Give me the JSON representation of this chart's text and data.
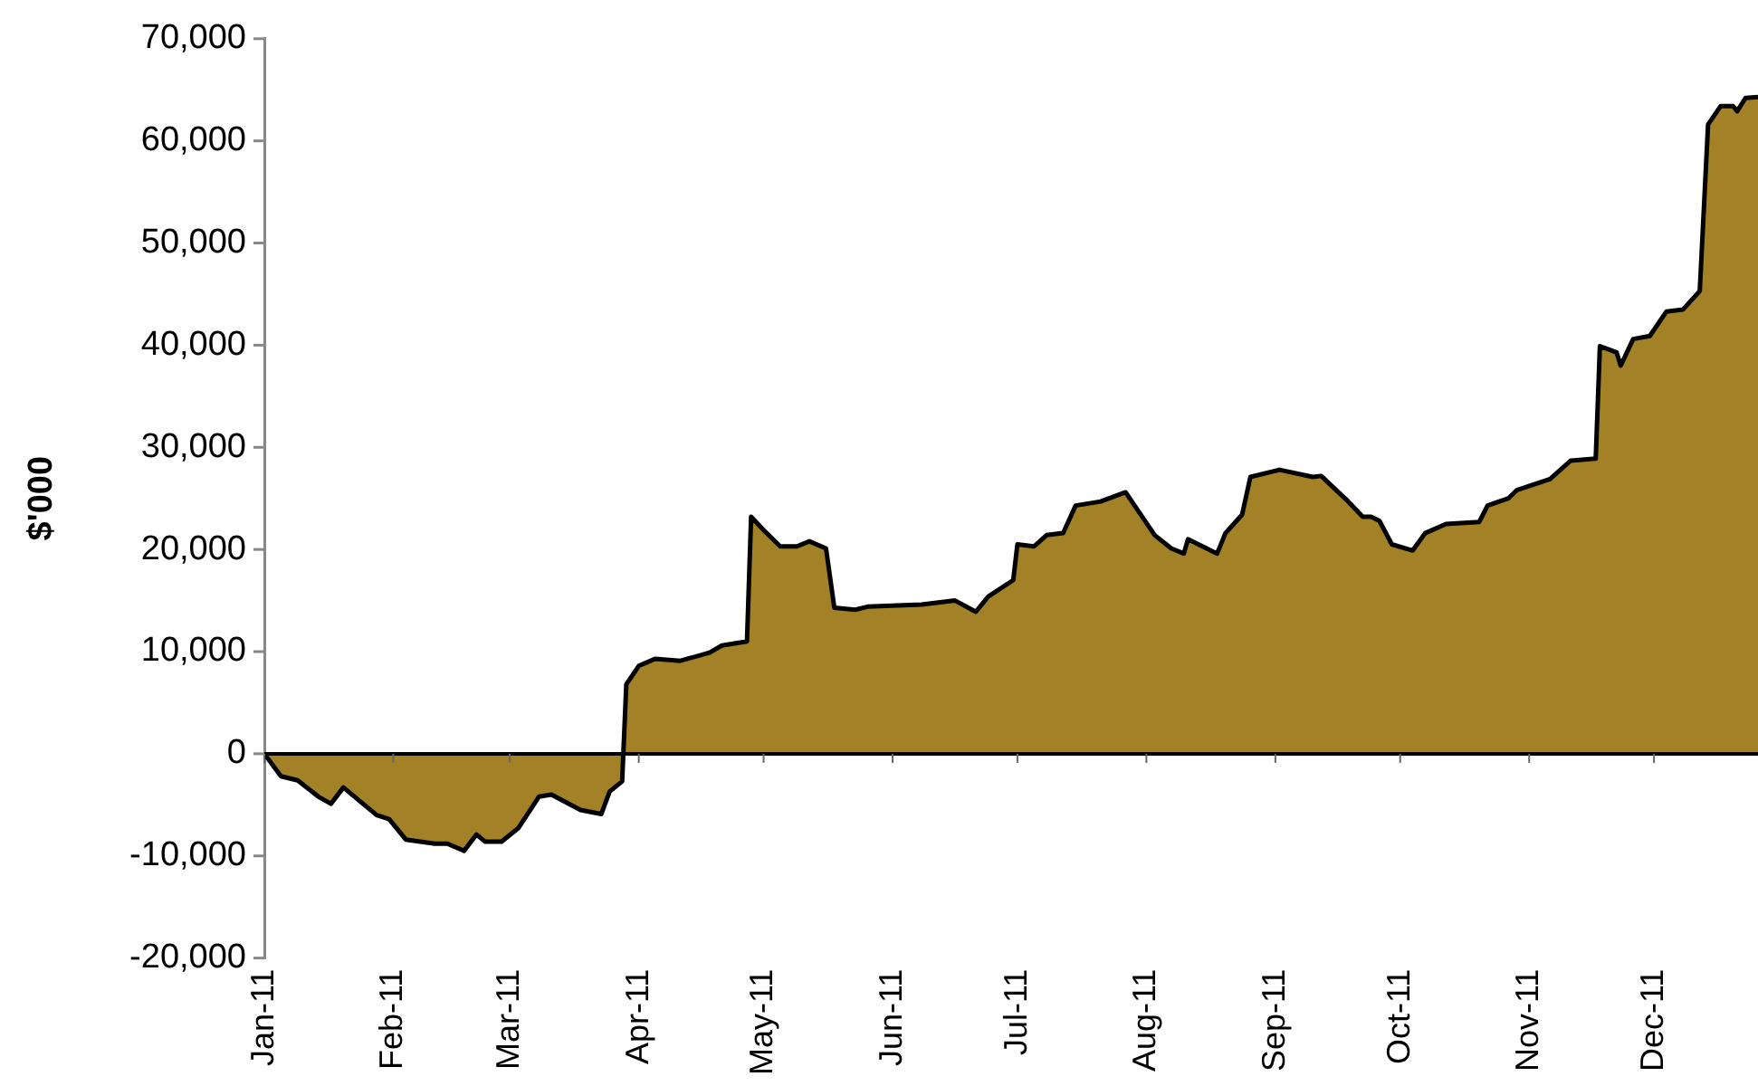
{
  "chart_data": {
    "type": "area",
    "ylabel": "$'000",
    "xlim": [
      "2011-01-01",
      "2011-12-26"
    ],
    "xticks": [
      {
        "value": "2011-01-01",
        "label": "Jan-11"
      },
      {
        "value": "2011-02-01",
        "label": "Feb-11"
      },
      {
        "value": "2011-03-01",
        "label": "Mar-11"
      },
      {
        "value": "2011-04-01",
        "label": "Apr-11"
      },
      {
        "value": "2011-05-01",
        "label": "May-11"
      },
      {
        "value": "2011-06-01",
        "label": "Jun-11"
      },
      {
        "value": "2011-07-01",
        "label": "Jul-11"
      },
      {
        "value": "2011-08-01",
        "label": "Aug-11"
      },
      {
        "value": "2011-09-01",
        "label": "Sep-11"
      },
      {
        "value": "2011-10-01",
        "label": "Oct-11"
      },
      {
        "value": "2011-11-01",
        "label": "Nov-11"
      },
      {
        "value": "2011-12-01",
        "label": "Dec-11"
      }
    ],
    "ylim": [
      -20000,
      70000
    ],
    "yticks": [
      {
        "value": -20000,
        "label": "-20,000"
      },
      {
        "value": -10000,
        "label": "-10,000"
      },
      {
        "value": 0,
        "label": "0"
      },
      {
        "value": 10000,
        "label": "10,000"
      },
      {
        "value": 20000,
        "label": "20,000"
      },
      {
        "value": 30000,
        "label": "30,000"
      },
      {
        "value": 40000,
        "label": "40,000"
      },
      {
        "value": 50000,
        "label": "50,000"
      },
      {
        "value": 60000,
        "label": "60,000"
      },
      {
        "value": 70000,
        "label": "70,000"
      }
    ],
    "grid": false,
    "ref_lines": [
      {
        "axis": "y",
        "value": 0,
        "color": "#000000"
      }
    ],
    "legend": false,
    "marker": "none",
    "line_style": "solid",
    "x": [
      "2011-01-01",
      "2011-01-05",
      "2011-01-09",
      "2011-01-14",
      "2011-01-17",
      "2011-01-20",
      "2011-01-28",
      "2011-01-31",
      "2011-02-04",
      "2011-02-11",
      "2011-02-14",
      "2011-02-18",
      "2011-02-21",
      "2011-02-23",
      "2011-02-27",
      "2011-03-03",
      "2011-03-08",
      "2011-03-11",
      "2011-03-18",
      "2011-03-23",
      "2011-03-25",
      "2011-03-28",
      "2011-03-29",
      "2011-04-01",
      "2011-04-05",
      "2011-04-11",
      "2011-04-18",
      "2011-04-21",
      "2011-04-27",
      "2011-04-28",
      "2011-05-01",
      "2011-05-05",
      "2011-05-09",
      "2011-05-12",
      "2011-05-16",
      "2011-05-18",
      "2011-05-23",
      "2011-05-26",
      "2011-06-08",
      "2011-06-16",
      "2011-06-21",
      "2011-06-24",
      "2011-06-30",
      "2011-07-01",
      "2011-07-05",
      "2011-07-08",
      "2011-07-12",
      "2011-07-15",
      "2011-07-21",
      "2011-07-27",
      "2011-08-03",
      "2011-08-07",
      "2011-08-10",
      "2011-08-11",
      "2011-08-18",
      "2011-08-20",
      "2011-08-24",
      "2011-08-26",
      "2011-09-02",
      "2011-09-10",
      "2011-09-12",
      "2011-09-18",
      "2011-09-22",
      "2011-09-24",
      "2011-09-26",
      "2011-09-29",
      "2011-10-04",
      "2011-10-07",
      "2011-10-12",
      "2011-10-20",
      "2011-10-22",
      "2011-10-27",
      "2011-10-29",
      "2011-11-06",
      "2011-11-11",
      "2011-11-17",
      "2011-11-18",
      "2011-11-22",
      "2011-11-23",
      "2011-11-26",
      "2011-11-30",
      "2011-12-04",
      "2011-12-08",
      "2011-12-12",
      "2011-12-14",
      "2011-12-17",
      "2011-12-20",
      "2011-12-21",
      "2011-12-23",
      "2011-12-26"
    ],
    "series": [
      {
        "color": "#a38227",
        "values": [
          0,
          -2200,
          -2600,
          -4200,
          -4900,
          -3300,
          -6000,
          -6400,
          -8400,
          -8800,
          -8800,
          -9500,
          -7900,
          -8600,
          -8600,
          -7300,
          -4200,
          -4000,
          -5500,
          -5900,
          -3700,
          -2700,
          6800,
          8600,
          9300,
          9100,
          9900,
          10600,
          11000,
          23200,
          21900,
          20300,
          20300,
          20800,
          20100,
          14300,
          14100,
          14400,
          14600,
          15000,
          13900,
          15400,
          17000,
          20500,
          20300,
          21400,
          21600,
          24300,
          24700,
          25600,
          21400,
          20100,
          19600,
          21000,
          19600,
          21600,
          23400,
          27100,
          27800,
          27100,
          27200,
          24900,
          23200,
          23200,
          22800,
          20500,
          19900,
          21600,
          22500,
          22700,
          24300,
          25000,
          25800,
          26900,
          28700,
          28900,
          39900,
          39300,
          38000,
          40600,
          40900,
          43300,
          43500,
          45300,
          61600,
          63400,
          63400,
          62900,
          64200,
          64300
        ]
      }
    ]
  }
}
